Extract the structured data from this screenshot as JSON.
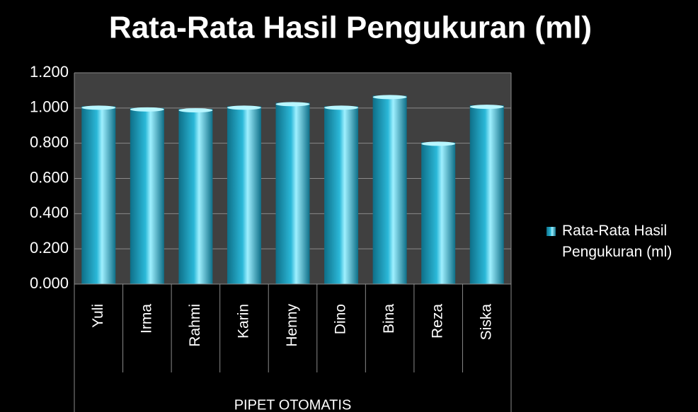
{
  "chart_data": {
    "type": "bar",
    "title": "Rata-Rata Hasil Pengukuran (ml)",
    "categories": [
      "Yuli",
      "Irma",
      "Rahmi",
      "Karin",
      "Henny",
      "Dino",
      "Bina",
      "Reza",
      "Siska"
    ],
    "group_label": "PIPET OTOMATIS",
    "series": [
      {
        "name": "Rata-Rata Hasil Pengukuran (ml)",
        "color": "#2bb8d8",
        "values": [
          1.01,
          1.0,
          0.995,
          1.01,
          1.03,
          1.01,
          1.07,
          0.805,
          1.015
        ]
      }
    ],
    "ylim": [
      0,
      1.2
    ],
    "yticks": [
      {
        "value": 0,
        "label": "0.000"
      },
      {
        "value": 0.2,
        "label": "0.200"
      },
      {
        "value": 0.4,
        "label": "0.400"
      },
      {
        "value": 0.6,
        "label": "0.600"
      },
      {
        "value": 0.8,
        "label": "0.800"
      },
      {
        "value": 1.0,
        "label": "1.000"
      },
      {
        "value": 1.2,
        "label": "1.200"
      }
    ],
    "grid": true,
    "legend": "right"
  }
}
